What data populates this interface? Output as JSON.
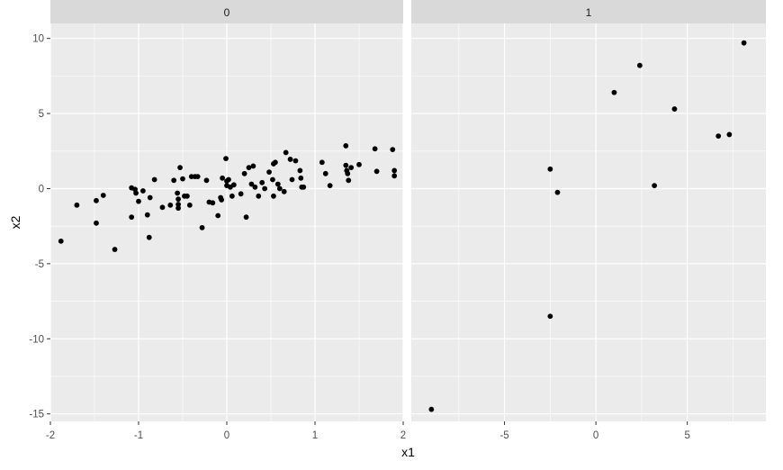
{
  "chart_data": {
    "type": "scatter",
    "xlabel": "x1",
    "ylabel": "x2",
    "ylim": [
      -15.5,
      11
    ],
    "y_ticks": [
      -15,
      -10,
      -5,
      0,
      5,
      10
    ],
    "colors": {
      "panel_bg": "#ebebeb",
      "strip_bg": "#d9d9d9",
      "grid": "#ffffff",
      "point": "#000000",
      "tick_text": "#4d4d4d",
      "tick_mark": "#333333"
    },
    "facets": [
      {
        "label": "0",
        "xlim": [
          -2.0,
          2.0
        ],
        "x_ticks": [
          -2,
          -1,
          0,
          1,
          2
        ],
        "points": [
          [
            -1.88,
            -3.5
          ],
          [
            -1.7,
            -1.1
          ],
          [
            -1.48,
            -0.8
          ],
          [
            -1.48,
            -2.3
          ],
          [
            -1.4,
            -0.45
          ],
          [
            -1.27,
            -4.05
          ],
          [
            -1.08,
            0.05
          ],
          [
            -1.08,
            -1.9
          ],
          [
            -1.04,
            -0.05
          ],
          [
            -1.03,
            -0.3
          ],
          [
            -1.0,
            -0.85
          ],
          [
            -0.95,
            -0.15
          ],
          [
            -0.9,
            -1.75
          ],
          [
            -0.88,
            -3.25
          ],
          [
            -0.87,
            -0.6
          ],
          [
            -0.82,
            0.6
          ],
          [
            -0.73,
            -1.25
          ],
          [
            -0.64,
            -1.1
          ],
          [
            -0.6,
            0.55
          ],
          [
            -0.56,
            -0.3
          ],
          [
            -0.55,
            -0.7
          ],
          [
            -0.55,
            -1.05
          ],
          [
            -0.55,
            -1.3
          ],
          [
            -0.53,
            1.4
          ],
          [
            -0.5,
            0.65
          ],
          [
            -0.48,
            -0.5
          ],
          [
            -0.45,
            -0.5
          ],
          [
            -0.42,
            -1.1
          ],
          [
            -0.4,
            0.8
          ],
          [
            -0.36,
            0.8
          ],
          [
            -0.33,
            0.8
          ],
          [
            -0.28,
            -2.6
          ],
          [
            -0.23,
            0.55
          ],
          [
            -0.2,
            -0.9
          ],
          [
            -0.16,
            -0.95
          ],
          [
            -0.1,
            -1.8
          ],
          [
            -0.07,
            -0.6
          ],
          [
            -0.06,
            -0.75
          ],
          [
            -0.05,
            0.7
          ],
          [
            -0.01,
            2.0
          ],
          [
            0.0,
            0.2
          ],
          [
            0.0,
            0.5
          ],
          [
            0.02,
            0.6
          ],
          [
            0.04,
            0.1
          ],
          [
            0.06,
            -0.5
          ],
          [
            0.08,
            0.25
          ],
          [
            0.16,
            -0.35
          ],
          [
            0.2,
            1.0
          ],
          [
            0.22,
            -1.9
          ],
          [
            0.25,
            1.4
          ],
          [
            0.28,
            0.3
          ],
          [
            0.3,
            1.5
          ],
          [
            0.32,
            0.1
          ],
          [
            0.36,
            -0.5
          ],
          [
            0.4,
            0.4
          ],
          [
            0.43,
            0.0
          ],
          [
            0.48,
            1.1
          ],
          [
            0.52,
            0.6
          ],
          [
            0.53,
            1.65
          ],
          [
            0.53,
            -0.5
          ],
          [
            0.55,
            1.75
          ],
          [
            0.58,
            0.3
          ],
          [
            0.6,
            0.0
          ],
          [
            0.65,
            -0.2
          ],
          [
            0.67,
            2.4
          ],
          [
            0.72,
            1.95
          ],
          [
            0.74,
            0.6
          ],
          [
            0.78,
            1.85
          ],
          [
            0.83,
            1.2
          ],
          [
            0.84,
            0.7
          ],
          [
            0.85,
            0.1
          ],
          [
            0.87,
            0.1
          ],
          [
            1.08,
            1.75
          ],
          [
            1.12,
            1.0
          ],
          [
            1.17,
            0.2
          ],
          [
            1.35,
            2.85
          ],
          [
            1.35,
            1.55
          ],
          [
            1.36,
            1.2
          ],
          [
            1.37,
            1.0
          ],
          [
            1.38,
            0.55
          ],
          [
            1.41,
            1.4
          ],
          [
            1.5,
            1.6
          ],
          [
            1.68,
            2.65
          ],
          [
            1.7,
            1.15
          ],
          [
            1.88,
            2.6
          ],
          [
            1.9,
            1.2
          ],
          [
            1.9,
            0.85
          ]
        ]
      },
      {
        "label": "1",
        "xlim": [
          -10.1,
          9.3
        ],
        "x_ticks": [
          -5,
          0,
          5
        ],
        "points": [
          [
            -9.0,
            -14.7
          ],
          [
            -2.5,
            1.3
          ],
          [
            -2.5,
            -8.5
          ],
          [
            -2.1,
            -0.25
          ],
          [
            1.0,
            6.4
          ],
          [
            2.4,
            8.2
          ],
          [
            3.2,
            0.2
          ],
          [
            4.3,
            5.3
          ],
          [
            6.7,
            3.5
          ],
          [
            7.3,
            3.6
          ],
          [
            8.1,
            9.7
          ]
        ]
      }
    ]
  }
}
